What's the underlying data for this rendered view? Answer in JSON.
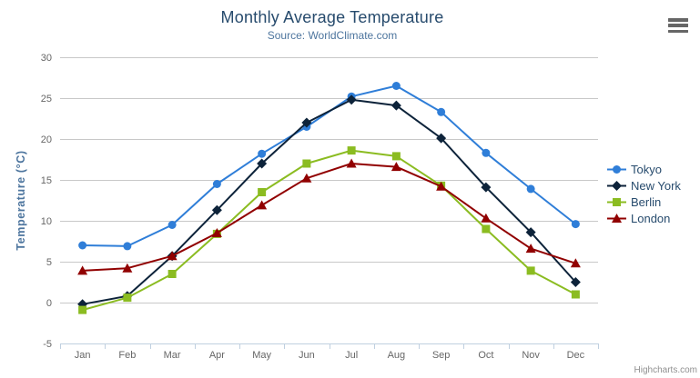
{
  "chart": {
    "title": "Monthly Average Temperature",
    "subtitle": "Source: WorldClimate.com",
    "credit": "Highcharts.com",
    "colors": {
      "background": "#ffffff",
      "title": "#274b6d",
      "subtitle": "#4d759e",
      "axis_title": "#4d759e",
      "axis_labels": "#666666",
      "grid": "#c8c8c8",
      "axis_line": "#c0d0e0",
      "legend_text": "#274b6d",
      "credit": "#909090",
      "menu_icon": "#666666"
    }
  },
  "export_menu": {
    "icon": "hamburger-icon"
  },
  "chart_data": {
    "type": "line",
    "title": "Monthly Average Temperature",
    "subtitle": "Source: WorldClimate.com",
    "xlabel": "",
    "ylabel": "Temperature (°C)",
    "ylim": [
      -5,
      30
    ],
    "ytick_interval": 5,
    "yticks": [
      30,
      25,
      20,
      15,
      10,
      5,
      0,
      -5
    ],
    "grid": true,
    "legend_position": "right",
    "categories": [
      "Jan",
      "Feb",
      "Mar",
      "Apr",
      "May",
      "Jun",
      "Jul",
      "Aug",
      "Sep",
      "Oct",
      "Nov",
      "Dec"
    ],
    "series": [
      {
        "name": "Tokyo",
        "color": "#2f7ed8",
        "marker": "circle",
        "values": [
          7.0,
          6.9,
          9.5,
          14.5,
          18.2,
          21.5,
          25.2,
          26.5,
          23.3,
          18.3,
          13.9,
          9.6
        ]
      },
      {
        "name": "New York",
        "color": "#0d233a",
        "marker": "diamond",
        "values": [
          -0.2,
          0.8,
          5.7,
          11.3,
          17.0,
          22.0,
          24.8,
          24.1,
          20.1,
          14.1,
          8.6,
          2.5
        ]
      },
      {
        "name": "Berlin",
        "color": "#8bbc21",
        "marker": "square",
        "values": [
          -0.9,
          0.6,
          3.5,
          8.4,
          13.5,
          17.0,
          18.6,
          17.9,
          14.3,
          9.0,
          3.9,
          1.0
        ]
      },
      {
        "name": "London",
        "color": "#910000",
        "marker": "triangle",
        "values": [
          3.9,
          4.2,
          5.7,
          8.5,
          11.9,
          15.2,
          17.0,
          16.6,
          14.2,
          10.3,
          6.6,
          4.8
        ]
      }
    ]
  }
}
